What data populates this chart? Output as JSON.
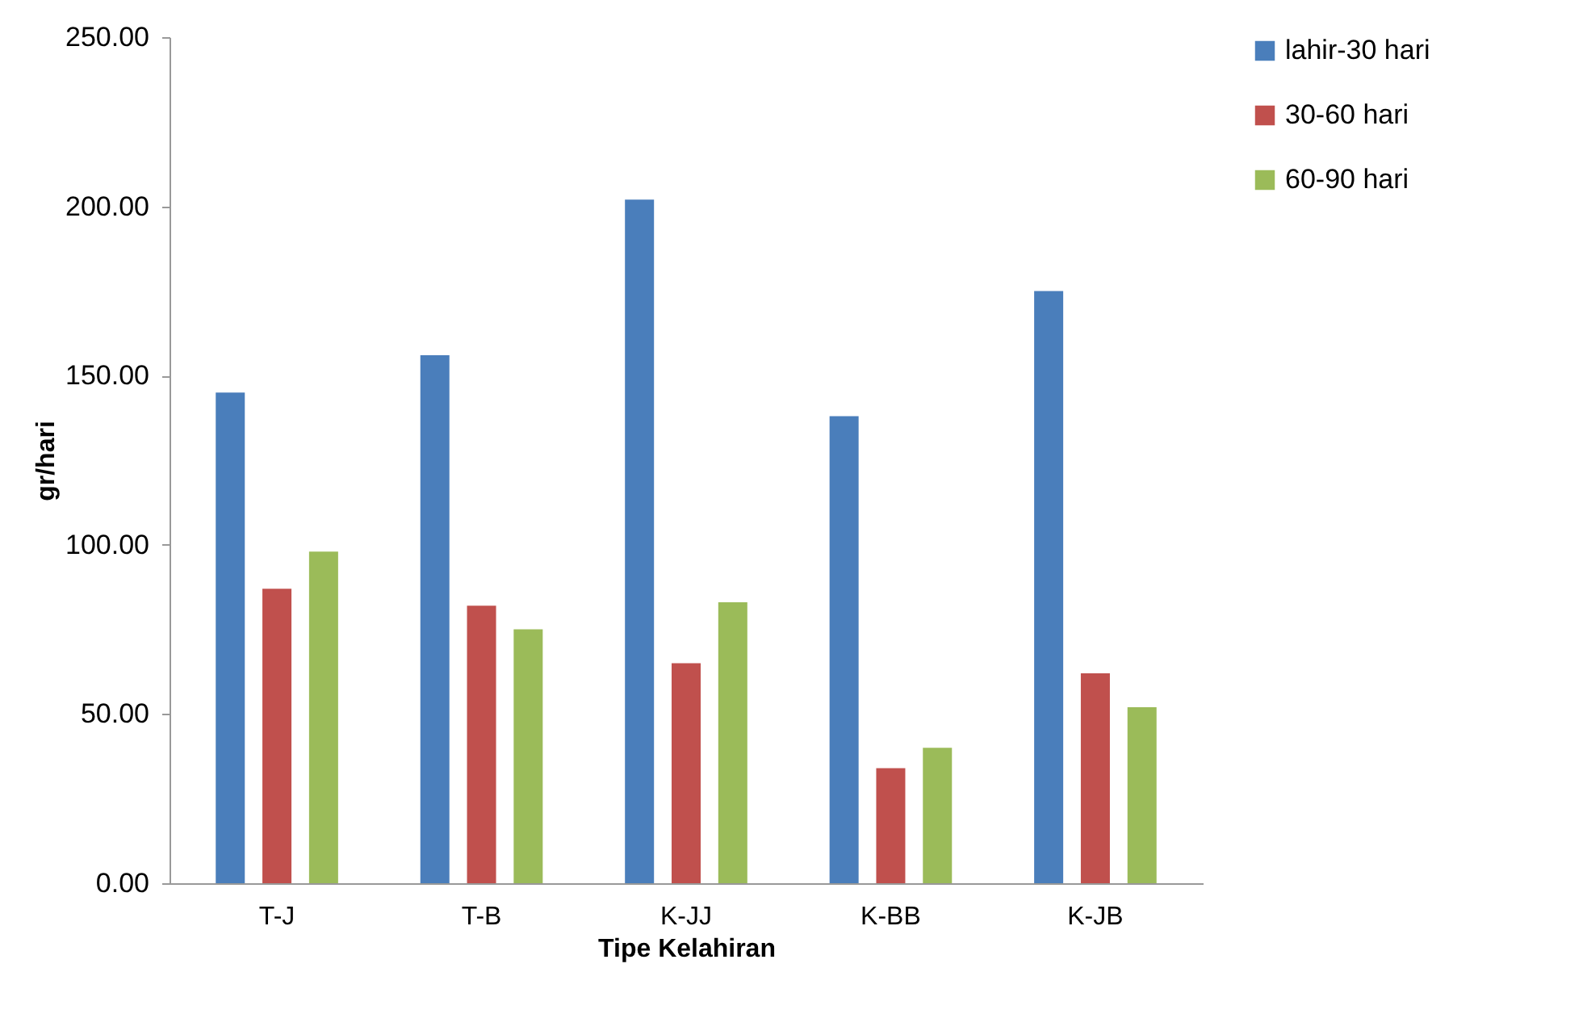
{
  "chart_data": {
    "type": "bar",
    "xlabel": "Tipe Kelahiran",
    "ylabel": "gr/hari",
    "categories": [
      "T-J",
      "T-B",
      "K-JJ",
      "K-BB",
      "K-JB"
    ],
    "series": [
      {
        "name": "lahir-30 hari",
        "color": "#4a7ebb",
        "values": [
          145,
          156,
          202,
          138,
          175
        ]
      },
      {
        "name": "30-60 hari",
        "color": "#c0504d",
        "values": [
          87,
          82,
          65,
          34,
          62
        ]
      },
      {
        "name": "60-90 hari",
        "color": "#9bbb59",
        "values": [
          98,
          75,
          83,
          40,
          52
        ]
      }
    ],
    "ylim": [
      0,
      250
    ],
    "yticks": [
      {
        "value": 0,
        "label": "0.00"
      },
      {
        "value": 50,
        "label": "50.00"
      },
      {
        "value": 100,
        "label": "100.00"
      },
      {
        "value": 150,
        "label": "150.00"
      },
      {
        "value": 200,
        "label": "200.00"
      },
      {
        "value": 250,
        "label": "250.00"
      }
    ],
    "grid": false,
    "legend": "right"
  }
}
